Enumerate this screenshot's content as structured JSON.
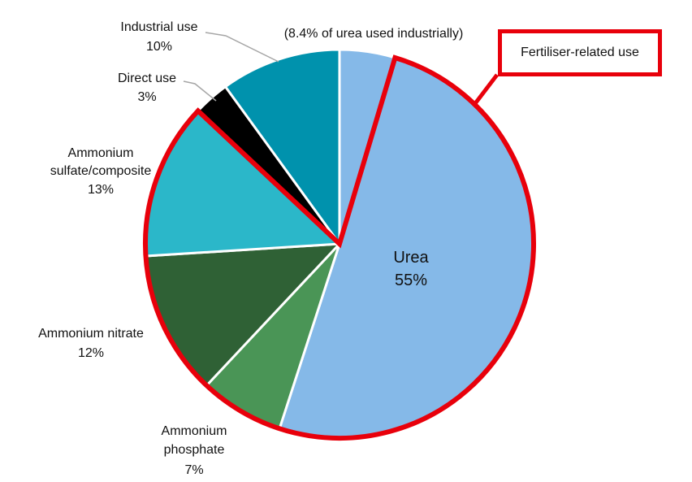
{
  "chart_data": {
    "type": "pie",
    "slices": [
      {
        "label": "Urea",
        "value": 55,
        "value_label": "55%",
        "color": "#85b9e8"
      },
      {
        "label": "Ammonium phosphate",
        "value": 7,
        "value_label": "7%",
        "color": "#4a9556"
      },
      {
        "label": "Ammonium nitrate",
        "value": 12,
        "value_label": "12%",
        "color": "#2f6135"
      },
      {
        "label": "Ammonium sulfate/composite",
        "value": 13,
        "value_label": "13%",
        "color": "#2bb7c9"
      },
      {
        "label": "Direct use",
        "value": 3,
        "value_label": "3%",
        "color": "#000000"
      },
      {
        "label": "Industrial use",
        "value": 10,
        "value_label": "10%",
        "color": "#0092ad"
      }
    ],
    "annotations": {
      "urea_industrial_note": "(8.4% of urea used industrially)",
      "callout": "Fertiliser-related use"
    },
    "highlight_color": "#e8000b"
  }
}
